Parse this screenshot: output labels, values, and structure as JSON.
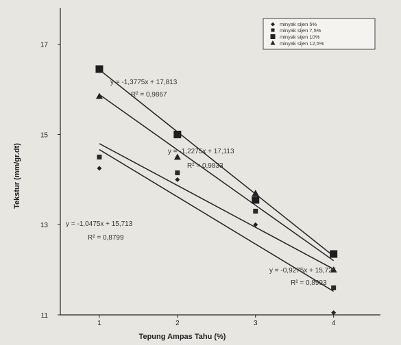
{
  "chart_data": {
    "type": "scatter",
    "xlabel": "Tepung Ampas Tahu (%)",
    "ylabel": "Tekstur (mm/gr.dt)",
    "x": [
      1,
      2,
      3,
      4
    ],
    "xlim": [
      0.5,
      4.6
    ],
    "ylim": [
      11,
      17.8
    ],
    "x_ticks": [
      "1",
      "2",
      "3",
      "4"
    ],
    "y_ticks": [
      "11",
      "13",
      "15",
      "17"
    ],
    "grid": false,
    "legend_position": "top-right",
    "series": [
      {
        "name": "minyak sijen 5%",
        "marker": "diamond",
        "values": [
          14.25,
          14.0,
          13.0,
          11.05
        ],
        "fit": {
          "slope": -1.0475,
          "intercept": 15.713
        }
      },
      {
        "name": "minyak sijen 7,5%",
        "marker": "square-small",
        "values": [
          14.5,
          14.15,
          13.3,
          11.6
        ],
        "fit": {
          "slope": -0.9275,
          "intercept": 15.725
        }
      },
      {
        "name": "minyak sijen 10%",
        "marker": "square",
        "values": [
          16.45,
          15.0,
          13.55,
          12.35
        ],
        "fit": {
          "slope": -1.3775,
          "intercept": 17.813
        }
      },
      {
        "name": "minyak sijen 12,5%",
        "marker": "triangle",
        "values": [
          15.85,
          14.5,
          13.7,
          12.0
        ],
        "fit": {
          "slope": -1.2275,
          "intercept": 17.113
        }
      }
    ],
    "annotations": [
      {
        "equation": "y = -1,3775x + 17,813",
        "r2": "R² = 0,9867"
      },
      {
        "equation": "y = -1,2275x + 17,113",
        "r2": "R² = 0,9833"
      },
      {
        "equation": "y = -1,0475x + 15,713",
        "r2": "R² = 0,8799"
      },
      {
        "equation": "y = -0,9275x + 15,725",
        "r2": "R² = 0,8993"
      }
    ]
  }
}
